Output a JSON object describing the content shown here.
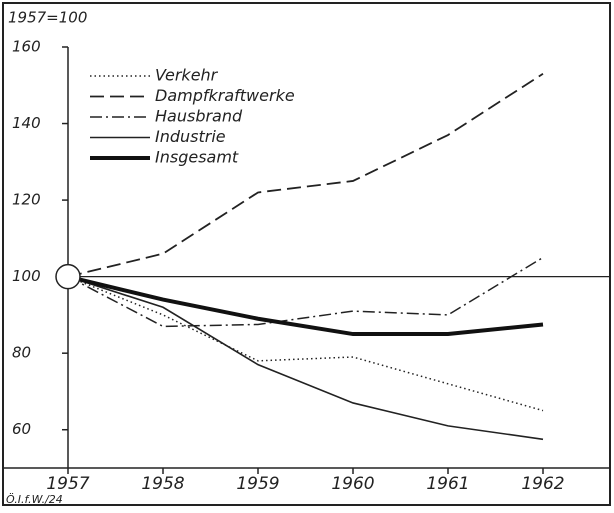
{
  "chart_data": {
    "type": "line",
    "y_axis_label": "1957=100",
    "annotation": "Ö.I.f.W./24",
    "x": [
      1957,
      1958,
      1959,
      1960,
      1961,
      1962
    ],
    "xlim": [
      1957,
      1962.6
    ],
    "xticks": [
      1957,
      1958,
      1959,
      1960,
      1961,
      1962
    ],
    "ylim": [
      50,
      160
    ],
    "yticks": [
      60,
      80,
      100,
      120,
      140,
      160
    ],
    "reference_line": 100,
    "series": [
      {
        "name": "Verkehr",
        "color": "#222222",
        "dash": "dotted",
        "values": [
          100,
          90,
          78,
          79,
          72,
          65
        ]
      },
      {
        "name": "Dampfkraftwerke",
        "color": "#222222",
        "dash": "dashed",
        "values": [
          100,
          106,
          122,
          125,
          137,
          153
        ]
      },
      {
        "name": "Hausbrand",
        "color": "#222222",
        "dash": "dashdot",
        "values": [
          100,
          87,
          87.5,
          91,
          90,
          105
        ]
      },
      {
        "name": "Industrie",
        "color": "#222222",
        "dash": "solid",
        "values": [
          100,
          92,
          77,
          67,
          61,
          57.5
        ]
      },
      {
        "name": "Insgesamt",
        "color": "#111111",
        "dash": "bold",
        "values": [
          100,
          94,
          89,
          85,
          85,
          87.5
        ]
      }
    ]
  }
}
